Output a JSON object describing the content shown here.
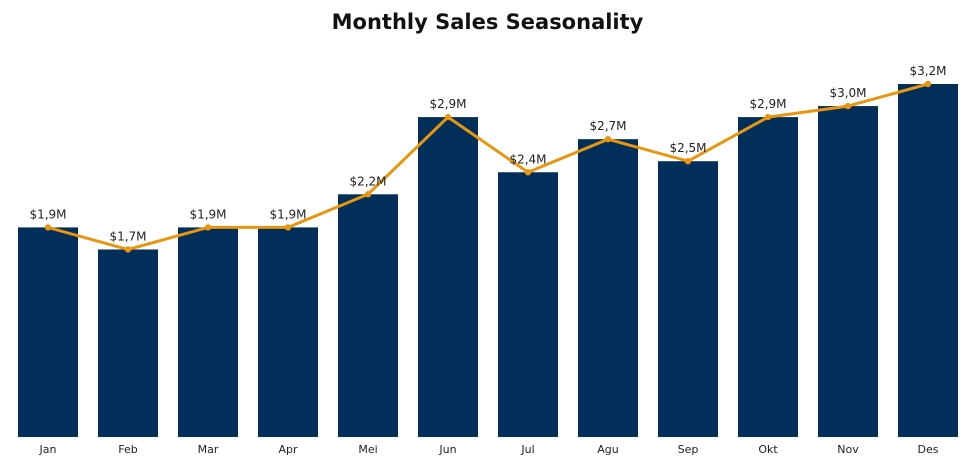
{
  "chart_data": {
    "type": "bar",
    "title": "Monthly Sales Seasonality",
    "categories": [
      "Jan",
      "Feb",
      "Mar",
      "Apr",
      "Mei",
      "Jun",
      "Jul",
      "Agu",
      "Sep",
      "Okt",
      "Nov",
      "Des"
    ],
    "values": [
      1.9,
      1.7,
      1.9,
      1.9,
      2.2,
      2.9,
      2.4,
      2.7,
      2.5,
      2.9,
      3.0,
      3.2
    ],
    "data_labels": [
      "$1,9M",
      "$1,7M",
      "$1,9M",
      "$1,9M",
      "$2,2M",
      "$2,9M",
      "$2,4M",
      "$2,7M",
      "$2,5M",
      "$2,9M",
      "$3,0M",
      "$3,2M"
    ],
    "line_overlay": true,
    "ylabel": "",
    "xlabel": "",
    "ylim": [
      0,
      3.2
    ],
    "grid": false,
    "colors": {
      "bar": "#022f5a",
      "line": "#e8960f"
    }
  }
}
